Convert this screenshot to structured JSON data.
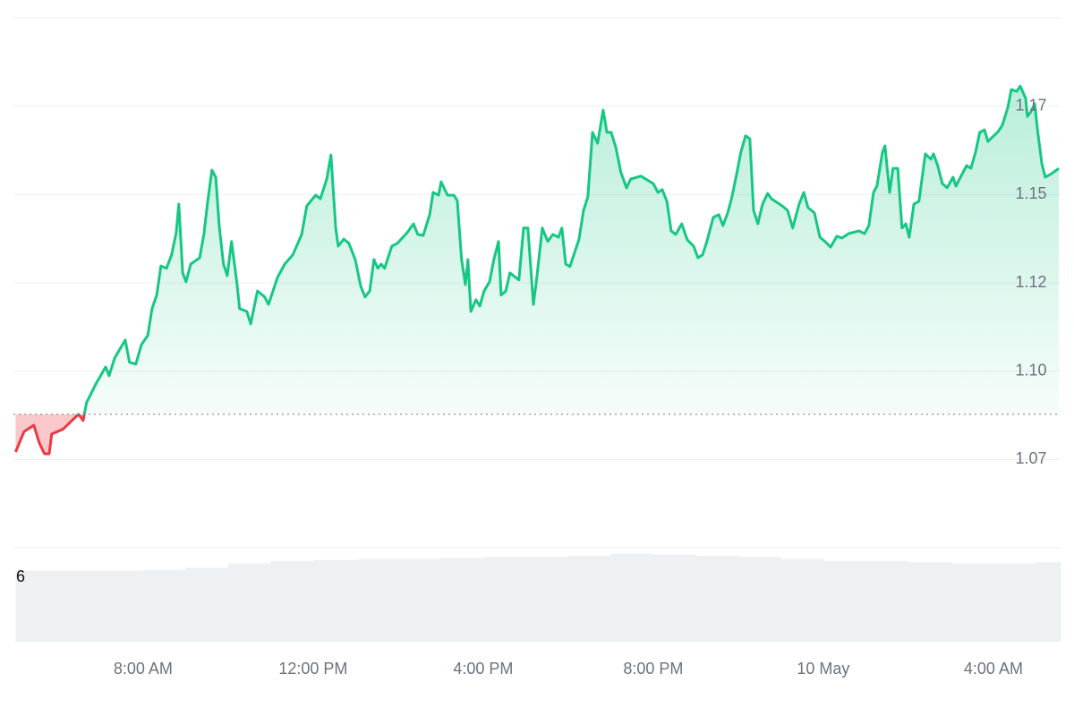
{
  "chart_data": {
    "type": "line",
    "x": [
      5.0,
      5.2,
      5.43,
      5.56,
      5.68,
      5.79,
      5.85,
      6.11,
      6.48,
      6.59,
      6.67,
      6.9,
      7.12,
      7.2,
      7.33,
      7.58,
      7.68,
      7.83,
      7.96,
      8.11,
      8.21,
      8.32,
      8.42,
      8.55,
      8.67,
      8.78,
      8.84,
      8.93,
      9.01,
      9.12,
      9.33,
      9.43,
      9.52,
      9.62,
      9.71,
      9.79,
      9.89,
      9.98,
      10.08,
      10.21,
      10.27,
      10.44,
      10.53,
      10.69,
      10.86,
      10.95,
      11.16,
      11.33,
      11.52,
      11.73,
      11.85,
      12.06,
      12.17,
      12.32,
      12.42,
      12.53,
      12.59,
      12.72,
      12.84,
      12.99,
      13.12,
      13.22,
      13.33,
      13.43,
      13.52,
      13.6,
      13.68,
      13.85,
      13.98,
      14.21,
      14.36,
      14.46,
      14.59,
      14.74,
      14.82,
      14.95,
      15.01,
      15.16,
      15.31,
      15.39,
      15.49,
      15.58,
      15.64,
      15.71,
      15.83,
      15.92,
      16.02,
      16.15,
      16.25,
      16.36,
      16.42,
      16.53,
      16.63,
      16.84,
      16.95,
      17.05,
      17.18,
      17.26,
      17.39,
      17.52,
      17.64,
      17.77,
      17.85,
      17.94,
      18.04,
      18.13,
      18.25,
      18.36,
      18.46,
      18.57,
      18.69,
      18.82,
      18.91,
      19.01,
      19.12,
      19.24,
      19.37,
      19.47,
      19.71,
      20.0,
      20.11,
      20.21,
      20.32,
      20.42,
      20.53,
      20.67,
      20.8,
      20.95,
      21.05,
      21.16,
      21.26,
      21.41,
      21.54,
      21.64,
      21.75,
      21.85,
      21.96,
      22.06,
      22.17,
      22.27,
      22.36,
      22.46,
      22.57,
      22.69,
      22.78,
      23.03,
      23.16,
      23.28,
      23.43,
      23.54,
      23.64,
      23.79,
      23.92,
      24.04,
      24.17,
      24.32,
      24.44,
      24.59,
      24.84,
      24.97,
      25.07,
      25.18,
      25.26,
      25.39,
      25.45,
      25.56,
      25.64,
      25.75,
      25.85,
      25.94,
      26.02,
      26.13,
      26.25,
      26.4,
      26.53,
      26.59,
      26.69,
      26.8,
      26.91,
      27.05,
      27.12,
      27.26,
      27.37,
      27.47,
      27.58,
      27.68,
      27.79,
      27.87,
      28.11,
      28.21,
      28.34,
      28.42,
      28.55,
      28.63,
      28.76,
      28.8,
      28.88,
      28.97,
      29.05,
      29.14,
      29.22,
      29.37,
      29.54
    ],
    "series": [
      {
        "color": "#16c784",
        "values": [
          1.0771,
          1.0829,
          1.0847,
          1.0796,
          1.0766,
          1.0766,
          1.0822,
          1.0835,
          1.0878,
          1.086,
          1.0911,
          1.0966,
          1.1012,
          1.0987,
          1.1037,
          1.1088,
          1.1025,
          1.102,
          1.1075,
          1.1101,
          1.1177,
          1.1215,
          1.1298,
          1.1291,
          1.1329,
          1.1392,
          1.1473,
          1.1278,
          1.1253,
          1.1303,
          1.1321,
          1.1387,
          1.1481,
          1.1569,
          1.1549,
          1.1412,
          1.1303,
          1.127,
          1.1367,
          1.1245,
          1.1177,
          1.1169,
          1.1134,
          1.1227,
          1.121,
          1.1189,
          1.1265,
          1.1303,
          1.1329,
          1.1387,
          1.1468,
          1.1498,
          1.1488,
          1.1544,
          1.1612,
          1.1405,
          1.1354,
          1.1374,
          1.1362,
          1.1316,
          1.124,
          1.121,
          1.1227,
          1.1316,
          1.1291,
          1.1303,
          1.1291,
          1.1354,
          1.1362,
          1.1392,
          1.1417,
          1.1387,
          1.1384,
          1.1443,
          1.1506,
          1.1498,
          1.1536,
          1.1498,
          1.1498,
          1.1483,
          1.1316,
          1.1245,
          1.1316,
          1.1169,
          1.1202,
          1.1184,
          1.1227,
          1.1253,
          1.1316,
          1.1367,
          1.1215,
          1.1227,
          1.1278,
          1.1258,
          1.1405,
          1.1405,
          1.1189,
          1.1265,
          1.1405,
          1.1367,
          1.1387,
          1.1379,
          1.1405,
          1.1303,
          1.1296,
          1.1329,
          1.1372,
          1.1455,
          1.1493,
          1.1676,
          1.1645,
          1.1739,
          1.1676,
          1.1676,
          1.1633,
          1.1562,
          1.1519,
          1.1544,
          1.1552,
          1.1531,
          1.1506,
          1.1514,
          1.1481,
          1.1397,
          1.1387,
          1.1417,
          1.1372,
          1.1354,
          1.1321,
          1.1329,
          1.1367,
          1.1435,
          1.1443,
          1.1412,
          1.1448,
          1.1493,
          1.1557,
          1.162,
          1.1666,
          1.1658,
          1.1455,
          1.1417,
          1.1473,
          1.1503,
          1.1488,
          1.1468,
          1.1455,
          1.1405,
          1.1473,
          1.1506,
          1.1463,
          1.1448,
          1.1379,
          1.1367,
          1.1351,
          1.1382,
          1.1377,
          1.1389,
          1.1397,
          1.1389,
          1.1412,
          1.1506,
          1.1524,
          1.162,
          1.1638,
          1.1506,
          1.1574,
          1.1574,
          1.1405,
          1.1417,
          1.1379,
          1.1473,
          1.1481,
          1.1615,
          1.16,
          1.1615,
          1.1582,
          1.1531,
          1.1519,
          1.1549,
          1.1524,
          1.1557,
          1.1582,
          1.1574,
          1.162,
          1.1676,
          1.1683,
          1.165,
          1.1678,
          1.1696,
          1.1747,
          1.1797,
          1.1792,
          1.1807,
          1.1772,
          1.1721,
          1.1734,
          1.1757,
          1.1671,
          1.1587,
          1.1549,
          1.1559,
          1.1574
        ]
      }
    ],
    "baseline": 1.0878,
    "down_color": "#ea3943",
    "xlim": [
      4.95,
      29.58
    ],
    "xticks": [
      {
        "value": 8,
        "label": "8:00 AM"
      },
      {
        "value": 12,
        "label": "12:00 PM"
      },
      {
        "value": 16,
        "label": "4:00 PM"
      },
      {
        "value": 20,
        "label": "8:00 PM"
      },
      {
        "value": 24,
        "label": "10 May"
      },
      {
        "value": 28,
        "label": "4:00 AM"
      }
    ],
    "ylim": [
      1.05,
      1.2
    ],
    "yticks": [
      {
        "value": 1.075,
        "label": "1.07"
      },
      {
        "value": 1.1,
        "label": "1.10"
      },
      {
        "value": 1.125,
        "label": "1.12"
      },
      {
        "value": 1.15,
        "label": "1.15"
      },
      {
        "value": 1.175,
        "label": "1.17"
      }
    ],
    "grid": true,
    "volume": {
      "color": "#eef1f4",
      "x": [
        5,
        6,
        7,
        8,
        9,
        10,
        11,
        12,
        13,
        14,
        15,
        16,
        17,
        18,
        19,
        20,
        21,
        22,
        23,
        24,
        25,
        26,
        27,
        28,
        29
      ],
      "values": [
        6.6,
        6.6,
        6.6,
        6.7,
        6.9,
        7.3,
        7.5,
        7.6,
        7.7,
        7.7,
        7.8,
        7.9,
        7.9,
        8.0,
        8.2,
        8.1,
        8.0,
        7.9,
        7.7,
        7.5,
        7.5,
        7.4,
        7.3,
        7.3,
        7.4
      ],
      "ylim": [
        0,
        8.75
      ],
      "yticks": [
        6
      ]
    }
  }
}
